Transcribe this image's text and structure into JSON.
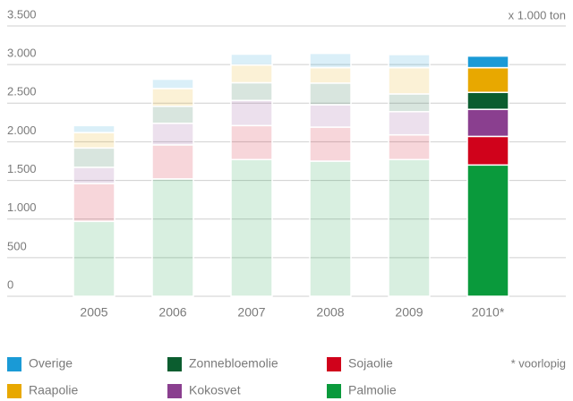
{
  "chart_data": {
    "type": "stacked_bar",
    "unit_label": "x 1.000 ton",
    "footnote": "* voorlopig",
    "categories": [
      "2005",
      "2006",
      "2007",
      "2008",
      "2009",
      "2010*"
    ],
    "series": [
      {
        "name": "Palmolie",
        "color": "#0a9a3c",
        "values": [
          970,
          1520,
          1770,
          1750,
          1770,
          1700
        ]
      },
      {
        "name": "Sojaolie",
        "color": "#d0021b",
        "values": [
          490,
          440,
          440,
          440,
          320,
          370
        ]
      },
      {
        "name": "Kokosvet",
        "color": "#8a3f8f",
        "values": [
          210,
          280,
          325,
          290,
          300,
          350
        ]
      },
      {
        "name": "Zonnebloemolie",
        "color": "#0b5d2f",
        "values": [
          250,
          220,
          230,
          280,
          230,
          220
        ]
      },
      {
        "name": "Raapolie",
        "color": "#e8a800",
        "values": [
          200,
          230,
          230,
          200,
          340,
          320
        ]
      },
      {
        "name": "Overige",
        "color": "#1a9ad6",
        "values": [
          90,
          120,
          140,
          185,
          170,
          150
        ]
      }
    ],
    "ylim": [
      0,
      3500
    ],
    "yticks": [
      0,
      500,
      {
        "value": 1000,
        "label": "1.000"
      },
      {
        "value": 1500,
        "label": "1.500"
      },
      {
        "value": 2000,
        "label": "2.000"
      },
      {
        "value": 2500,
        "label": "2.500"
      },
      {
        "value": 3000,
        "label": "3.000"
      },
      {
        "value": 3500,
        "label": "3.500"
      }
    ],
    "grid": true
  }
}
